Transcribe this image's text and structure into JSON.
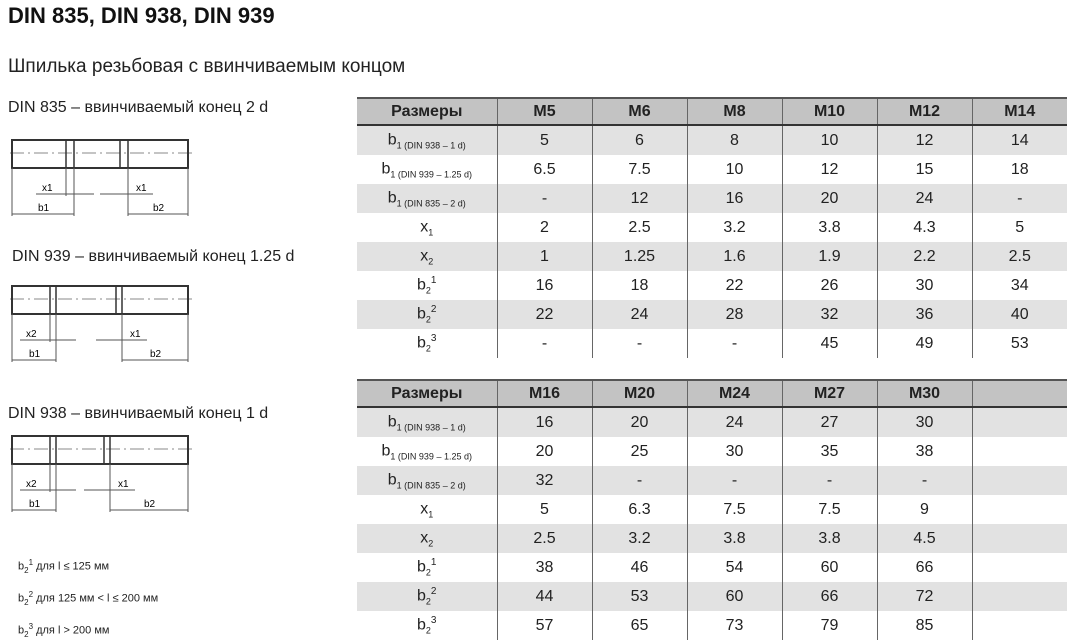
{
  "title": "DIN 835, DIN 938, DIN 939",
  "subtitle": "Шпилька резьбовая с ввинчиваемым концом",
  "drawings": [
    {
      "caption": "DIN 835 – ввинчиваемый конец 2 d",
      "labels": [
        "x1",
        "x1",
        "b1",
        "b2"
      ]
    },
    {
      "caption": "DIN 939 – ввинчиваемый конец 1.25 d",
      "labels": [
        "x2",
        "x1",
        "b1",
        "b2"
      ]
    },
    {
      "caption": "DIN 938 – ввинчиваемый конец 1 d",
      "labels": [
        "x2",
        "x1",
        "b1",
        "b2"
      ]
    }
  ],
  "notes": [
    {
      "sym": "b",
      "sub": "2",
      "sup": "1",
      "text": "для l ≤ 125 мм"
    },
    {
      "sym": "b",
      "sub": "2",
      "sup": "2",
      "text": "для 125 мм < l ≤ 200 мм"
    },
    {
      "sym": "b",
      "sub": "2",
      "sup": "3",
      "text": "для l > 200 мм"
    }
  ],
  "row_labels": [
    {
      "sym": "b",
      "sub": "1 (DIN 938 – 1 d)",
      "sup": ""
    },
    {
      "sym": "b",
      "sub": "1 (DIN 939 – 1.25 d)",
      "sup": ""
    },
    {
      "sym": "b",
      "sub": "1 (DIN 835 – 2 d)",
      "sup": ""
    },
    {
      "sym": "x",
      "sub": "1",
      "sup": ""
    },
    {
      "sym": "x",
      "sub": "2",
      "sup": ""
    },
    {
      "sym": "b",
      "sub": "2",
      "sup": "1"
    },
    {
      "sym": "b",
      "sub": "2",
      "sup": "2"
    },
    {
      "sym": "b",
      "sub": "2",
      "sup": "3"
    }
  ],
  "tables": [
    {
      "header": "Размеры",
      "columns": [
        "M5",
        "M6",
        "M8",
        "M10",
        "M12",
        "M14"
      ],
      "rows": [
        [
          "5",
          "6",
          "8",
          "10",
          "12",
          "14"
        ],
        [
          "6.5",
          "7.5",
          "10",
          "12",
          "15",
          "18"
        ],
        [
          "-",
          "12",
          "16",
          "20",
          "24",
          "-"
        ],
        [
          "2",
          "2.5",
          "3.2",
          "3.8",
          "4.3",
          "5"
        ],
        [
          "1",
          "1.25",
          "1.6",
          "1.9",
          "2.2",
          "2.5"
        ],
        [
          "16",
          "18",
          "22",
          "26",
          "30",
          "34"
        ],
        [
          "22",
          "24",
          "28",
          "32",
          "36",
          "40"
        ],
        [
          "-",
          "-",
          "-",
          "45",
          "49",
          "53"
        ]
      ]
    },
    {
      "header": "Размеры",
      "columns": [
        "M16",
        "M20",
        "M24",
        "M27",
        "M30",
        ""
      ],
      "rows": [
        [
          "16",
          "20",
          "24",
          "27",
          "30",
          ""
        ],
        [
          "20",
          "25",
          "30",
          "35",
          "38",
          ""
        ],
        [
          "32",
          "-",
          "-",
          "-",
          "-",
          ""
        ],
        [
          "5",
          "6.3",
          "7.5",
          "7.5",
          "9",
          ""
        ],
        [
          "2.5",
          "3.2",
          "3.8",
          "3.8",
          "4.5",
          ""
        ],
        [
          "38",
          "46",
          "54",
          "60",
          "66",
          ""
        ],
        [
          "44",
          "53",
          "60",
          "66",
          "72",
          ""
        ],
        [
          "57",
          "65",
          "73",
          "79",
          "85",
          ""
        ]
      ]
    }
  ],
  "colors": {
    "header_bg": "#c3c3c3",
    "shade_bg": "#e2e2e2"
  }
}
